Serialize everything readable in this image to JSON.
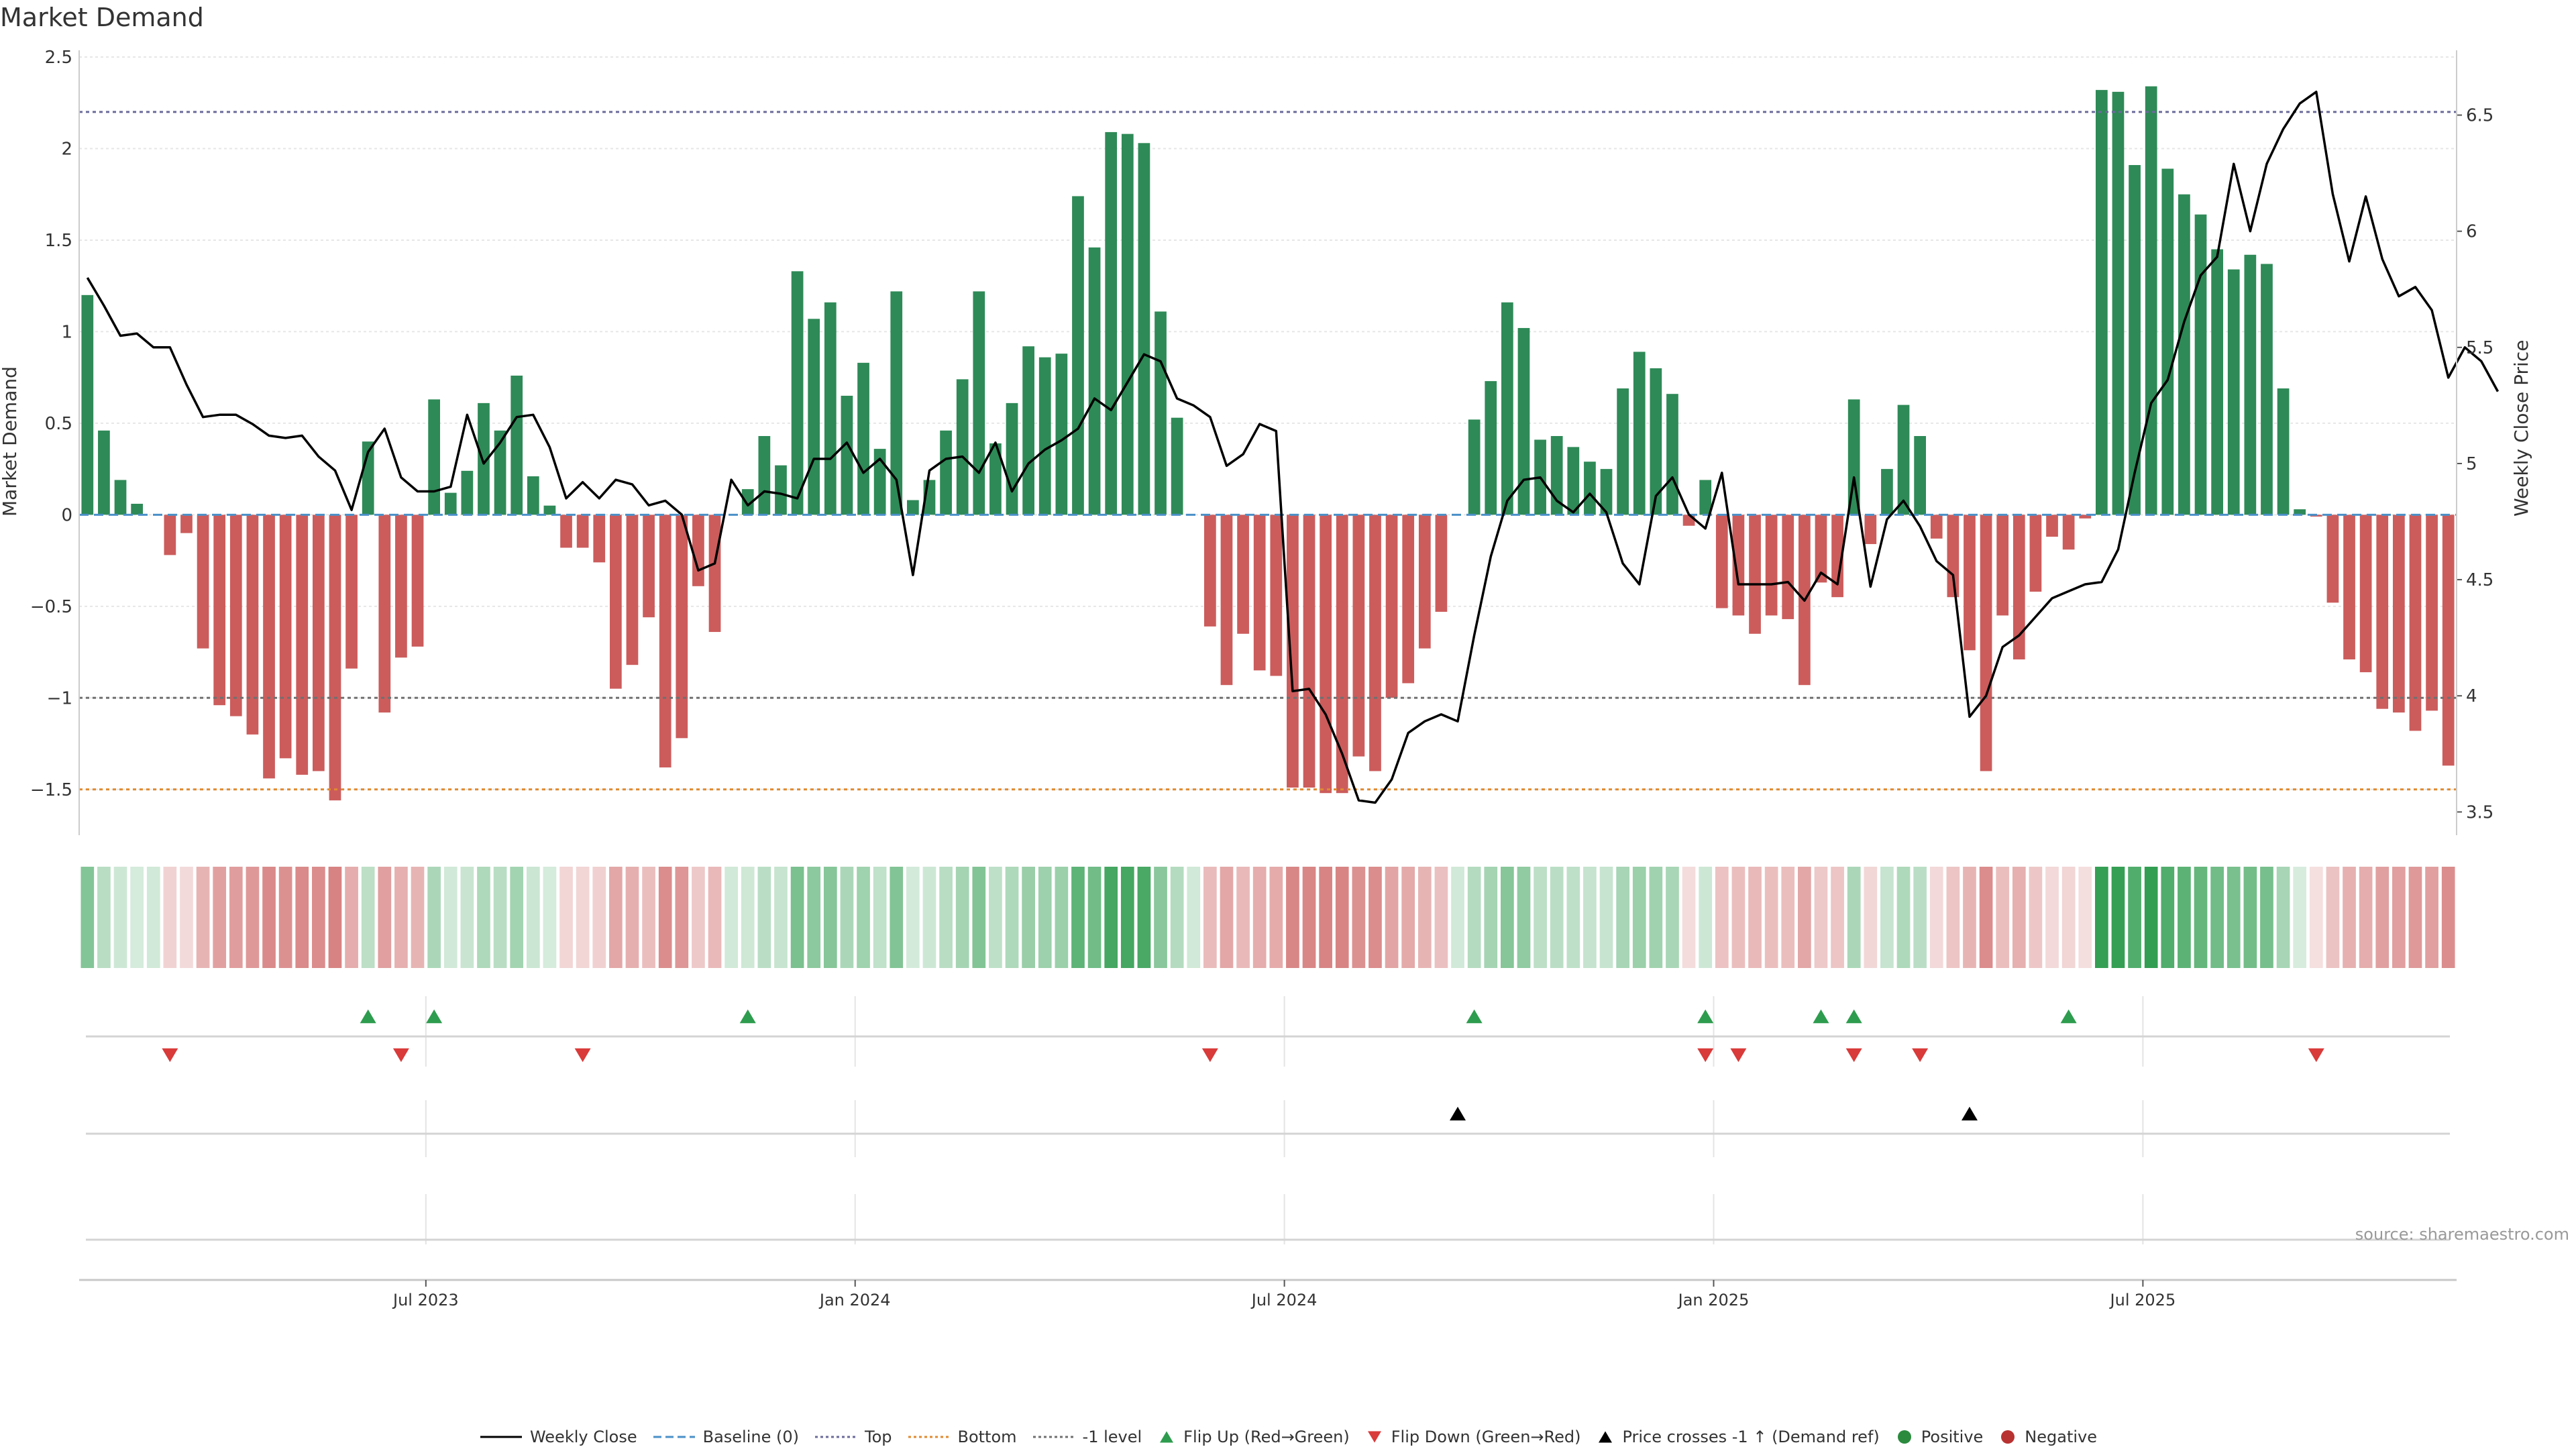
{
  "title": "Market Demand",
  "source": "source: sharemaestro.com",
  "chart_data": {
    "type": "bar",
    "title": "Market Demand",
    "ylabel_left": "Market Demand",
    "ylabel_right": "Weekly Close Price",
    "ylim_left": [
      -1.75,
      2.5
    ],
    "ylim_right": [
      3.4,
      6.75
    ],
    "yticks_left": [
      "2.5",
      "2",
      "1.5",
      "1",
      "0.5",
      "0",
      "−0.5",
      "−1",
      "−1.5"
    ],
    "yticks_right": [
      "6.5",
      "6",
      "5.5",
      "5",
      "4.5",
      "4",
      "3.5"
    ],
    "x_tick_labels": [
      "Jul 2023",
      "Jan 2024",
      "Jul 2024",
      "Jan 2025",
      "Jul 2025"
    ],
    "x_tick_week_index": [
      21,
      47,
      73,
      99,
      125
    ],
    "reference_lines": {
      "top": 2.2,
      "minus_one": -1.0,
      "bottom": -1.5,
      "baseline": 0
    },
    "demand": [
      1.2,
      0.46,
      0.19,
      0.06,
      0,
      -0.22,
      -0.1,
      -0.73,
      -1.04,
      -1.1,
      -1.2,
      -1.44,
      -1.33,
      -1.42,
      -1.4,
      -1.56,
      -0.84,
      0.4,
      -1.08,
      -0.78,
      -0.72,
      0.63,
      0.12,
      0.24,
      0.61,
      0.46,
      0.76,
      0.21,
      0.05,
      -0.18,
      -0.18,
      -0.26,
      -0.95,
      -0.82,
      -0.56,
      -1.38,
      -1.22,
      -0.39,
      -0.64,
      0,
      0.14,
      0.43,
      0.27,
      1.33,
      1.07,
      1.16,
      0.65,
      0.83,
      0.36,
      1.22,
      0.08,
      0.19,
      0.46,
      0.74,
      1.22,
      0.39,
      0.61,
      0.92,
      0.86,
      0.88,
      1.74,
      1.46,
      2.09,
      2.08,
      2.03,
      1.11,
      0.53,
      0,
      -0.61,
      -0.93,
      -0.65,
      -0.85,
      -0.88,
      -1.49,
      -1.49,
      -1.52,
      -1.52,
      -1.32,
      -1.4,
      -1.0,
      -0.92,
      -0.73,
      -0.53,
      0,
      0.52,
      0.73,
      1.16,
      1.02,
      0.41,
      0.43,
      0.37,
      0.29,
      0.25,
      0.69,
      0.89,
      0.8,
      0.66,
      -0.06,
      0.19,
      -0.51,
      -0.55,
      -0.65,
      -0.55,
      -0.57,
      -0.93,
      -0.37,
      -0.45,
      0.63,
      -0.16,
      0.25,
      0.6,
      0.43,
      -0.13,
      -0.45,
      -0.74,
      -1.4,
      -0.55,
      -0.79,
      -0.42,
      -0.12,
      -0.19,
      -0.02,
      2.32,
      2.31,
      1.91,
      2.34,
      1.89,
      1.75,
      1.64,
      1.45,
      1.34,
      1.42,
      1.37,
      0.69,
      0.03,
      -0.01,
      -0.48,
      -0.79,
      -0.86,
      -1.06,
      -1.08,
      -1.18,
      -1.07,
      -1.37
    ],
    "weekly_close": [
      5.8,
      5.68,
      5.55,
      5.56,
      5.5,
      5.5,
      5.34,
      5.2,
      5.21,
      5.21,
      5.17,
      5.12,
      5.11,
      5.12,
      5.03,
      4.97,
      4.8,
      5.05,
      5.15,
      4.94,
      4.88,
      4.88,
      4.9,
      5.21,
      5.0,
      5.09,
      5.2,
      5.21,
      5.07,
      4.85,
      4.92,
      4.85,
      4.93,
      4.91,
      4.82,
      4.84,
      4.78,
      4.54,
      4.57,
      4.93,
      4.82,
      4.88,
      4.87,
      4.85,
      5.02,
      5.02,
      5.09,
      4.96,
      5.02,
      4.93,
      4.52,
      4.97,
      5.02,
      5.03,
      4.96,
      5.09,
      4.88,
      5.0,
      5.06,
      5.1,
      5.15,
      5.28,
      5.23,
      5.35,
      5.47,
      5.44,
      5.28,
      5.25,
      5.2,
      4.99,
      5.04,
      5.17,
      5.14,
      4.02,
      4.03,
      3.92,
      3.75,
      3.55,
      3.54,
      3.64,
      3.84,
      3.89,
      3.92,
      3.89,
      4.26,
      4.6,
      4.84,
      4.93,
      4.94,
      4.84,
      4.79,
      4.87,
      4.79,
      4.57,
      4.48,
      4.86,
      4.94,
      4.78,
      4.72,
      4.96,
      4.48,
      4.48,
      4.48,
      4.49,
      4.41,
      4.53,
      4.48,
      4.94,
      4.47,
      4.76,
      4.84,
      4.73,
      4.58,
      4.52,
      3.91,
      4.0,
      4.21,
      4.26,
      4.34,
      4.42,
      4.45,
      4.48,
      4.49,
      4.63,
      4.96,
      5.26,
      5.36,
      5.61,
      5.81,
      5.89,
      6.29,
      6.0,
      6.29,
      6.44,
      6.55,
      6.6,
      6.16,
      5.87,
      6.15,
      5.88,
      5.72,
      5.76,
      5.66,
      5.37,
      5.5,
      5.44,
      5.31
    ],
    "flip_up_weeks": [
      17,
      21,
      40,
      84,
      98,
      105,
      107,
      120
    ],
    "flip_down_weeks": [
      5,
      19,
      30,
      68,
      98,
      100,
      107,
      111,
      135
    ],
    "price_cross_weeks": [
      83,
      114
    ],
    "legend": [
      {
        "label": "Weekly Close",
        "type": "line",
        "color": "#000000"
      },
      {
        "label": "Baseline (0)",
        "type": "dash",
        "color": "#4a90c8"
      },
      {
        "label": "Top",
        "type": "dotted",
        "color": "#6b6b9b"
      },
      {
        "label": "Bottom",
        "type": "dotted",
        "color": "#e08a30"
      },
      {
        "label": "-1 level",
        "type": "dotted",
        "color": "#707070"
      },
      {
        "label": "Flip Up (Red→Green)",
        "type": "tri-up",
        "color": "#2e9c4e"
      },
      {
        "label": "Flip Down (Green→Red)",
        "type": "tri-down",
        "color": "#d93a3a"
      },
      {
        "label": "Price crosses -1 ↑ (Demand ref)",
        "type": "tri-up",
        "color": "#000000"
      },
      {
        "label": "Positive",
        "type": "dot",
        "color": "#2b8a3e"
      },
      {
        "label": "Negative",
        "type": "dot",
        "color": "#b83232"
      }
    ]
  },
  "colors": {
    "positive_bar": "#2e8a57",
    "negative_bar": "#cc5c5c",
    "grid": "#e6e6e6",
    "axis": "#cccccc"
  }
}
